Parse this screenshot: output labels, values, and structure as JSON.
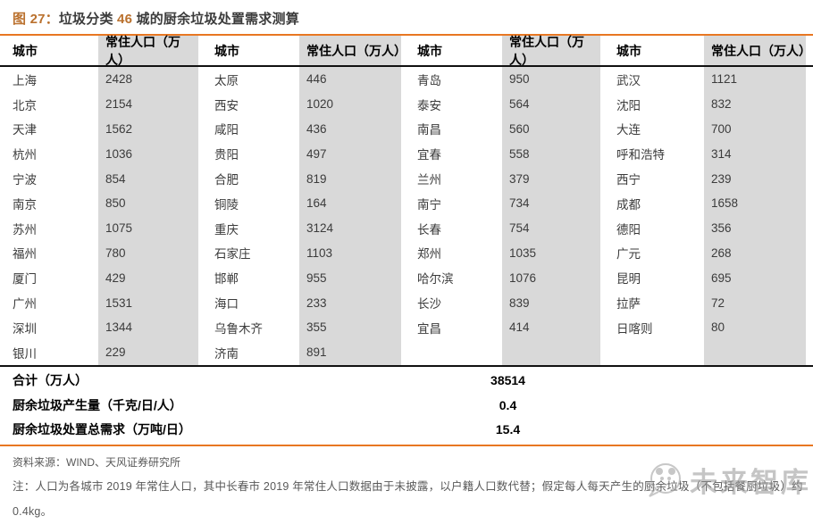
{
  "figure": {
    "label": "图 27：",
    "title_part1": "垃圾分类 ",
    "title_num": "46",
    "title_part2": " 城的厨余垃圾处置需求测算"
  },
  "table": {
    "header_city": "城市",
    "header_population": "常住人口（万人）",
    "rows": [
      [
        "上海",
        "2428",
        "太原",
        "446",
        "青岛",
        "950",
        "武汉",
        "1121"
      ],
      [
        "北京",
        "2154",
        "西安",
        "1020",
        "泰安",
        "564",
        "沈阳",
        "832"
      ],
      [
        "天津",
        "1562",
        "咸阳",
        "436",
        "南昌",
        "560",
        "大连",
        "700"
      ],
      [
        "杭州",
        "1036",
        "贵阳",
        "497",
        "宜春",
        "558",
        "呼和浩特",
        "314"
      ],
      [
        "宁波",
        "854",
        "合肥",
        "819",
        "兰州",
        "379",
        "西宁",
        "239"
      ],
      [
        "南京",
        "850",
        "铜陵",
        "164",
        "南宁",
        "734",
        "成都",
        "1658"
      ],
      [
        "苏州",
        "1075",
        "重庆",
        "3124",
        "长春",
        "754",
        "德阳",
        "356"
      ],
      [
        "福州",
        "780",
        "石家庄",
        "1103",
        "郑州",
        "1035",
        "广元",
        "268"
      ],
      [
        "厦门",
        "429",
        "邯郸",
        "955",
        "哈尔滨",
        "1076",
        "昆明",
        "695"
      ],
      [
        "广州",
        "1531",
        "海口",
        "233",
        "长沙",
        "839",
        "拉萨",
        "72"
      ],
      [
        "深圳",
        "1344",
        "乌鲁木齐",
        "355",
        "宜昌",
        "414",
        "日喀则",
        "80"
      ],
      [
        "银川",
        "229",
        "济南",
        "891",
        "",
        "",
        "",
        ""
      ]
    ]
  },
  "summary": {
    "rows": [
      {
        "label": "合计（万人）",
        "value": "38514"
      },
      {
        "label": "厨余垃圾产生量（千克/日/人）",
        "value": "0.4"
      },
      {
        "label": "厨余垃圾处置总需求（万吨/日）",
        "value": "15.4"
      }
    ]
  },
  "source": "资料来源：WIND、天风证券研究所",
  "note": "注：人口为各城市 2019 年常住人口，其中长春市 2019 年常住人口数据由于未披露，以户籍人口数代替；假定每人每天产生的厨余垃圾（不包括餐厨垃圾）约 0.4kg。",
  "watermark": "未来智库",
  "colors": {
    "accent_orange": "#E87722",
    "figure_label_orange": "#BA712E",
    "population_cell_gray": "#D9D9D9",
    "rule_black": "#111111",
    "footnote_gray": "#595959"
  }
}
